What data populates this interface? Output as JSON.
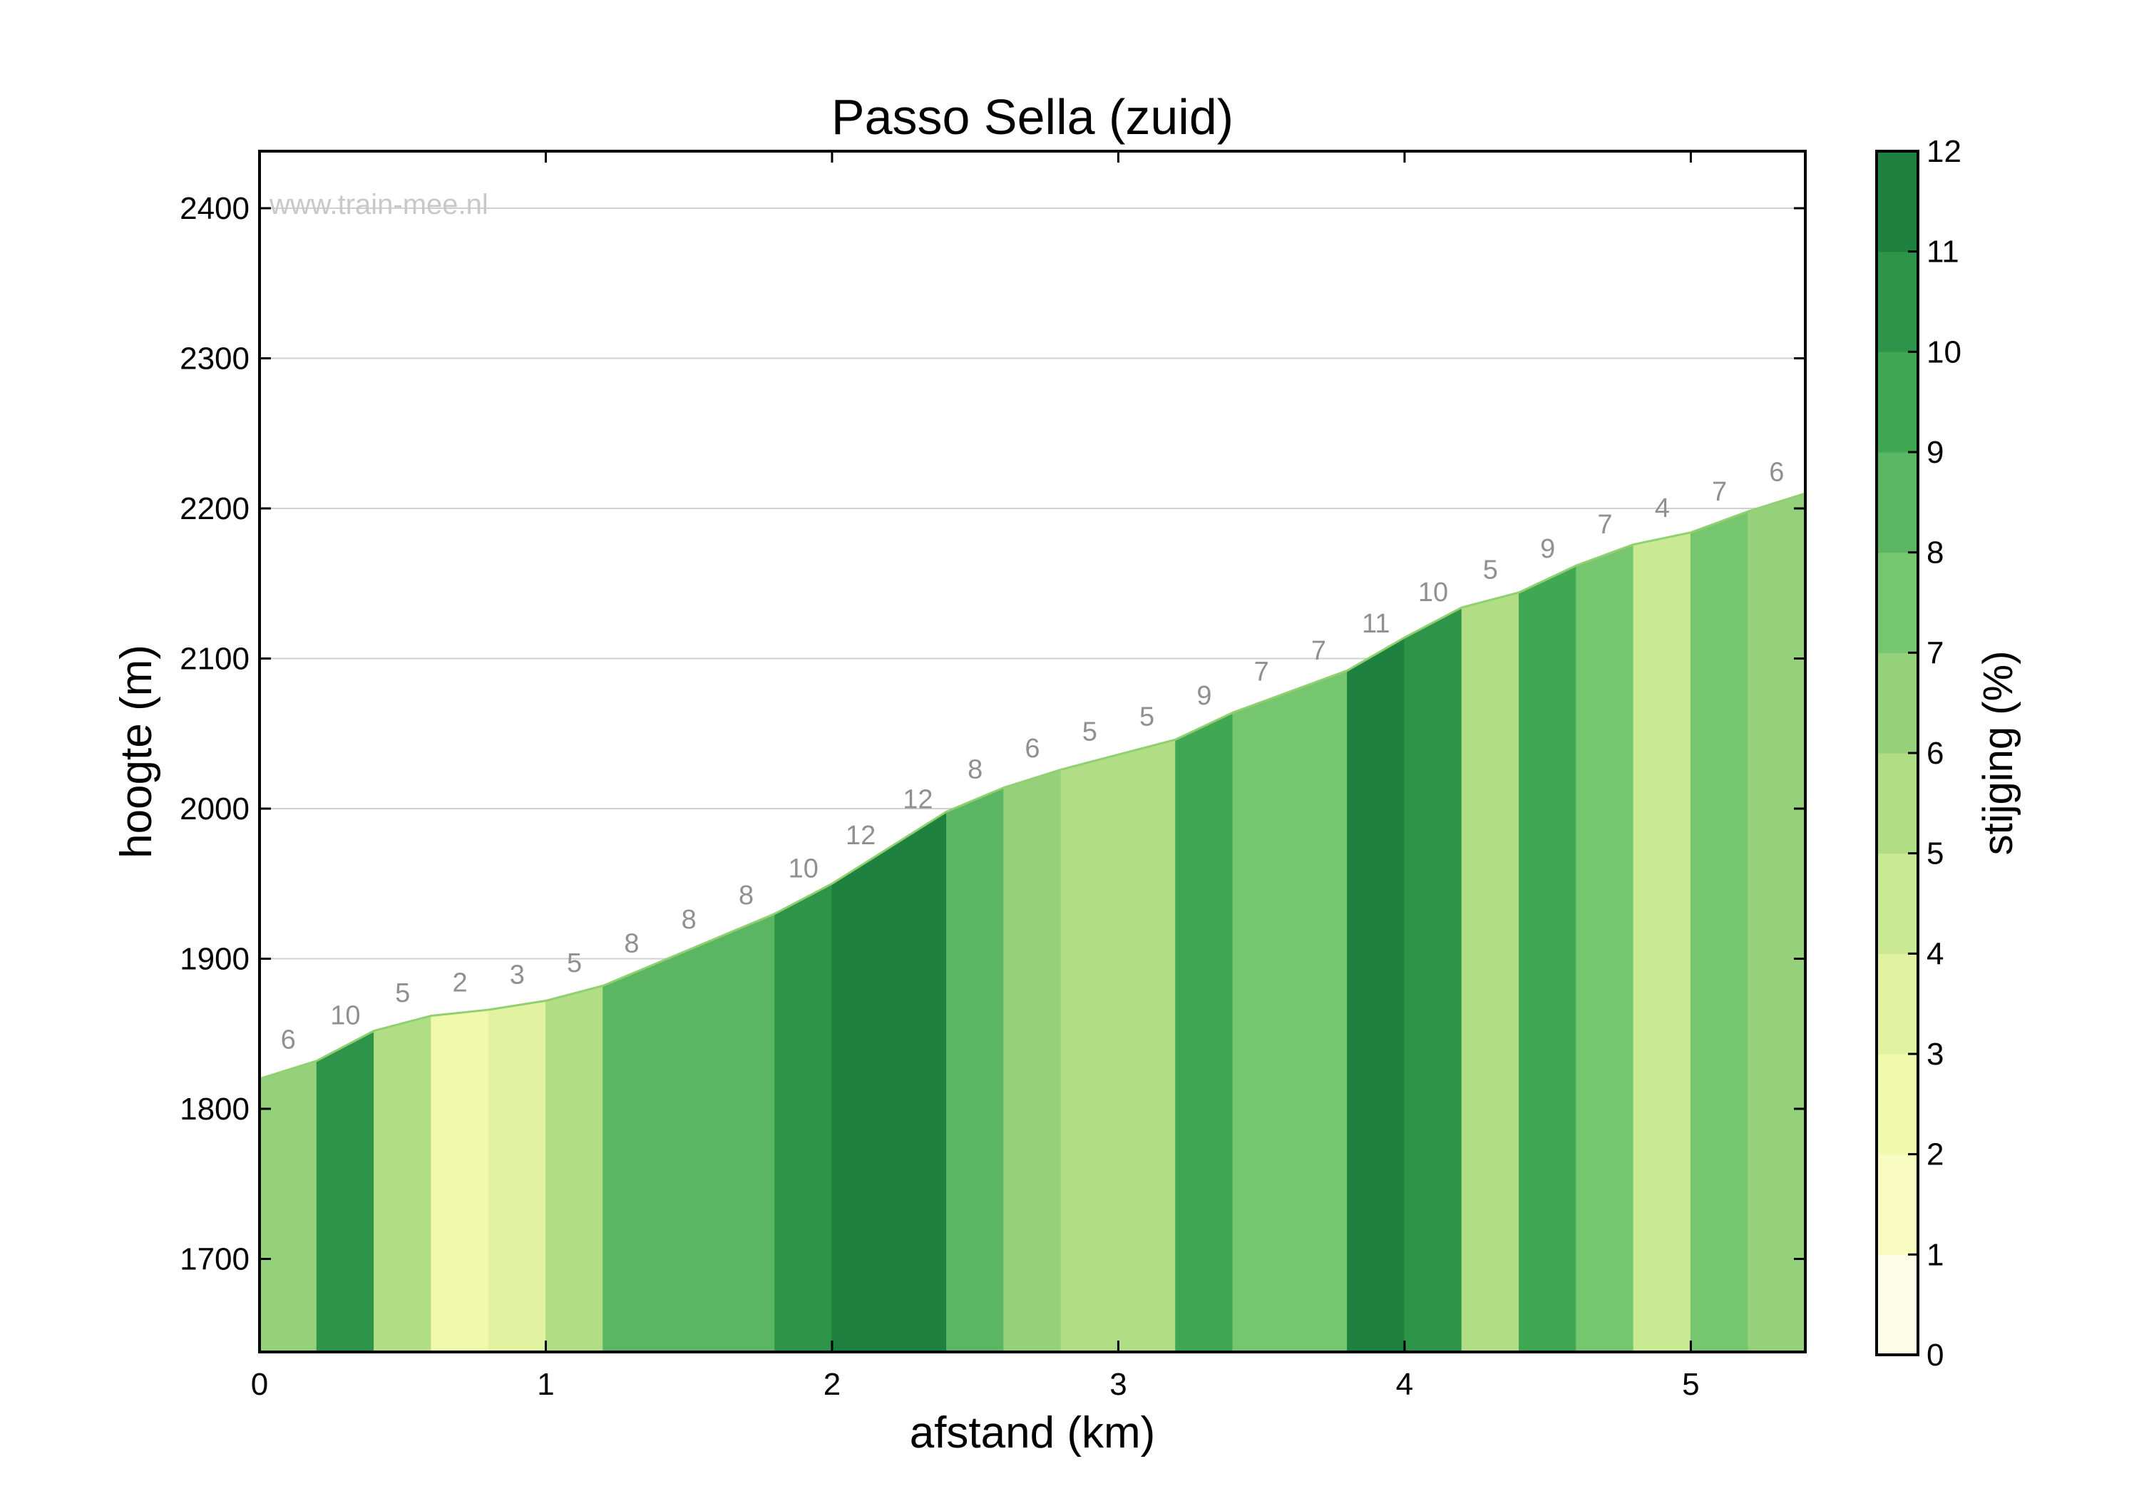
{
  "chart_data": {
    "type": "area",
    "title": "Passo Sella (zuid)",
    "xlabel": "afstand (km)",
    "ylabel": "hoogte (m)",
    "watermark": "www.train-mee.nl",
    "xlim": [
      0,
      5.4
    ],
    "ylim": [
      1638,
      2438
    ],
    "x_ticks": [
      0,
      1,
      2,
      3,
      4,
      5
    ],
    "y_ticks": [
      1700,
      1800,
      1900,
      2000,
      2100,
      2200,
      2300,
      2400
    ],
    "grid": true,
    "segment_length_km": 0.2,
    "gradients": [
      6,
      10,
      5,
      2,
      3,
      5,
      8,
      8,
      8,
      10,
      12,
      12,
      8,
      6,
      5,
      5,
      9,
      7,
      7,
      11,
      10,
      5,
      9,
      7,
      4,
      7,
      6
    ],
    "elevations": [
      1820,
      1832,
      1852,
      1862,
      1866,
      1872,
      1882,
      1898,
      1914,
      1930,
      1950,
      1974,
      1998,
      2014,
      2026,
      2036,
      2046,
      2064,
      2078,
      2092,
      2114,
      2134,
      2144,
      2162,
      2176,
      2184,
      2198,
      2210
    ],
    "colorbar": {
      "label": "stijging (%)",
      "range": [
        0,
        12
      ],
      "ticks": [
        0,
        1,
        2,
        3,
        4,
        5,
        6,
        7,
        8,
        9,
        10,
        11,
        12
      ],
      "colors": [
        "#fefde6",
        "#f8fcc0",
        "#f1f9ac",
        "#e1f3a0",
        "#c9e993",
        "#b1de84",
        "#95d17a",
        "#76c56f",
        "#5ab662",
        "#40a753",
        "#2d944a",
        "#1e8140"
      ]
    },
    "colors": {
      "outline": "#90d070",
      "label": "#909090",
      "grid": "#d0d0d0",
      "axis": "#000000"
    }
  }
}
